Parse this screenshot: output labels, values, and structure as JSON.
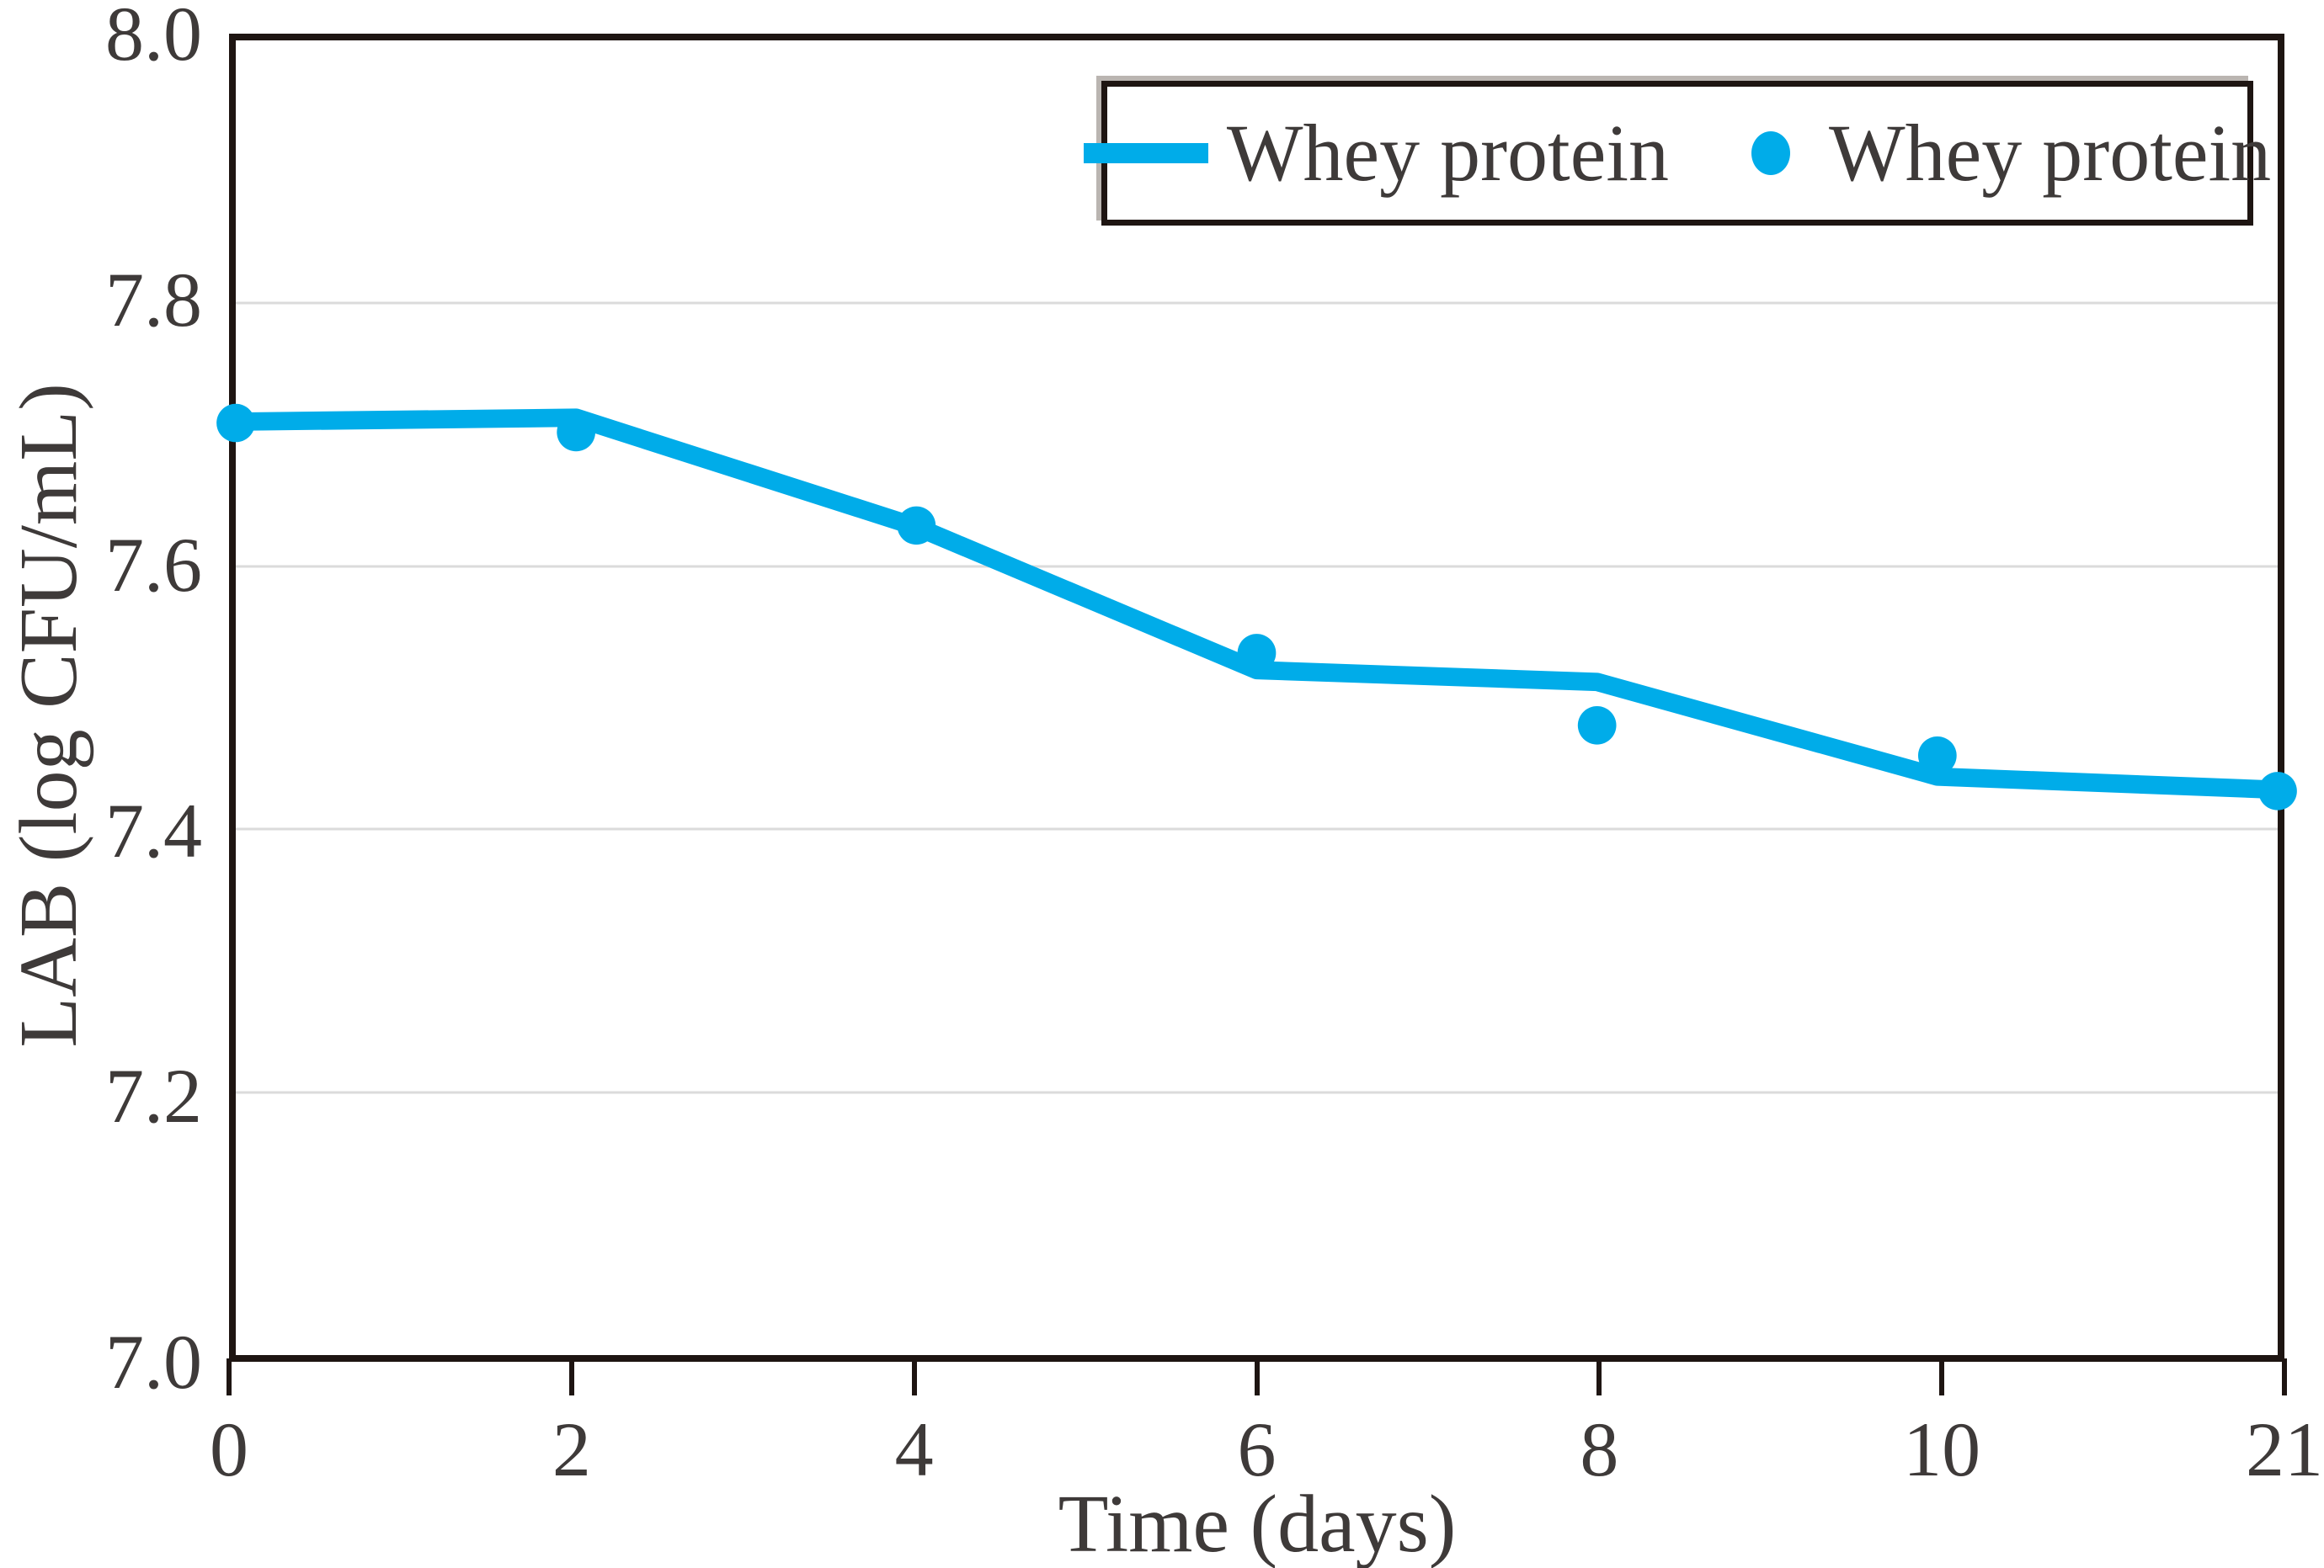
{
  "chart_data": {
    "type": "line",
    "title": "",
    "xlabel": "Time (days)",
    "ylabel": "LAB (log CFU/mL)",
    "ylim": [
      7.0,
      8.0
    ],
    "x_tick_labels": [
      "0",
      "2",
      "4",
      "6",
      "8",
      "10",
      "21"
    ],
    "y_tick_labels": [
      "8.0",
      "7.8",
      "7.6",
      "7.4",
      "7.2",
      "7.0"
    ],
    "grid_values": [
      7.8,
      7.6,
      7.4,
      7.2
    ],
    "grid": "horizontal-only",
    "categories": [
      0,
      2,
      4,
      6,
      8,
      10,
      21
    ],
    "series": [
      {
        "name": "Whey protein",
        "style": "line",
        "color": "#00ACE9",
        "values": [
          7.71,
          7.713,
          7.63,
          7.521,
          7.512,
          7.44,
          7.43
        ]
      },
      {
        "name": "Whey protein",
        "style": "scatter",
        "color": "#00ACE9",
        "values": [
          7.709,
          7.702,
          7.631,
          7.534,
          7.479,
          7.456,
          7.429
        ]
      }
    ],
    "legend": {
      "position": "top-right",
      "entries": [
        "Whey protein",
        "Whey protein"
      ]
    }
  },
  "colors": {
    "accent": "#00ACE9",
    "axis": "#1E1512",
    "text": "#3E3A39",
    "grid": "#DBDBDB",
    "background": "#FFFFFF"
  }
}
